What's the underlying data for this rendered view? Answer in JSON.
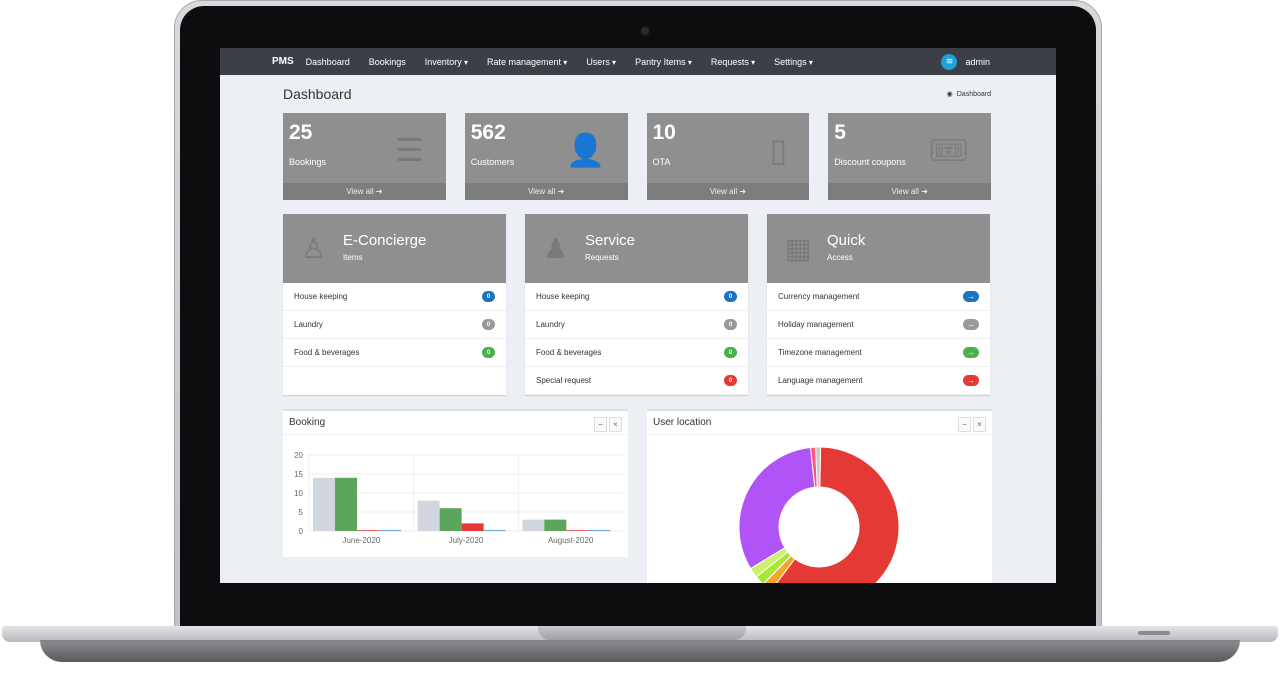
{
  "nav": {
    "brand": "PMS",
    "items": [
      {
        "label": "Dashboard",
        "dropdown": false
      },
      {
        "label": "Bookings",
        "dropdown": false
      },
      {
        "label": "Inventory",
        "dropdown": true
      },
      {
        "label": "Rate management",
        "dropdown": true
      },
      {
        "label": "Users",
        "dropdown": true
      },
      {
        "label": "Pantry Items",
        "dropdown": true
      },
      {
        "label": "Requests",
        "dropdown": true
      },
      {
        "label": "Settings",
        "dropdown": true
      }
    ],
    "user": "admin"
  },
  "page": {
    "title": "Dashboard",
    "breadcrumb": "Dashboard"
  },
  "stats": [
    {
      "value": "25",
      "label": "Bookings",
      "link": "View all",
      "icon": "list-icon"
    },
    {
      "value": "562",
      "label": "Customers",
      "link": "View all",
      "icon": "user-plus-icon"
    },
    {
      "value": "10",
      "label": "OTA",
      "link": "View all",
      "icon": "mobile-icon"
    },
    {
      "value": "5",
      "label": "Discount coupons",
      "link": "View all",
      "icon": "ticket-icon"
    }
  ],
  "panels": [
    {
      "title": "E-Concierge",
      "subtitle": "Items",
      "icon": "concierge-icon",
      "rows": [
        {
          "label": "House keeping",
          "value": "0",
          "color": "#1e73be"
        },
        {
          "label": "Laundry",
          "value": "0",
          "color": "#999999"
        },
        {
          "label": "Food & beverages",
          "value": "0",
          "color": "#4cae4c"
        }
      ]
    },
    {
      "title": "Service",
      "subtitle": "Requests",
      "icon": "group-icon",
      "rows": [
        {
          "label": "House keeping",
          "value": "0",
          "color": "#1e73be"
        },
        {
          "label": "Laundry",
          "value": "0",
          "color": "#999999"
        },
        {
          "label": "Food & beverages",
          "value": "0",
          "color": "#4cae4c"
        },
        {
          "label": "Special request",
          "value": "0",
          "color": "#e53935"
        }
      ]
    },
    {
      "title": "Quick",
      "subtitle": "Access",
      "icon": "access-icon",
      "rows": [
        {
          "label": "Currency management",
          "value": "→",
          "color": "#1e73be"
        },
        {
          "label": "Holiday management",
          "value": "→",
          "color": "#999999"
        },
        {
          "label": "Timezone management",
          "value": "→",
          "color": "#4cae4c"
        },
        {
          "label": "Language management",
          "value": "→",
          "color": "#e53935"
        }
      ]
    }
  ],
  "booking_box": {
    "title": "Booking"
  },
  "location_box": {
    "title": "User location"
  },
  "chart_data": [
    {
      "type": "bar",
      "title": "Booking",
      "categories": [
        "June-2020",
        "July-2020",
        "August-2020"
      ],
      "series": [
        {
          "values": [
            14,
            8,
            3
          ],
          "color": "#d2d6de"
        },
        {
          "values": [
            14,
            6,
            3
          ],
          "color": "#5ba65b"
        },
        {
          "values": [
            0.2,
            2,
            0.2
          ],
          "color": "#e53935"
        },
        {
          "values": [
            0.2,
            0.2,
            0.2
          ],
          "color": "#3c8dbc"
        }
      ],
      "yticks": [
        0,
        5,
        10,
        15,
        20
      ],
      "ylim": [
        0,
        20
      ],
      "grid": true
    },
    {
      "type": "pie",
      "title": "User location",
      "donut": true,
      "slices": [
        {
          "value": 60,
          "color": "#e53935"
        },
        {
          "value": 2,
          "color": "#f5a623"
        },
        {
          "value": 2,
          "color": "#a8e63a"
        },
        {
          "value": 2,
          "color": "#c7f26a"
        },
        {
          "value": 32,
          "color": "#b054f7"
        },
        {
          "value": 1,
          "color": "#ff5577"
        },
        {
          "value": 1,
          "color": "#c9c9c9"
        }
      ]
    }
  ]
}
